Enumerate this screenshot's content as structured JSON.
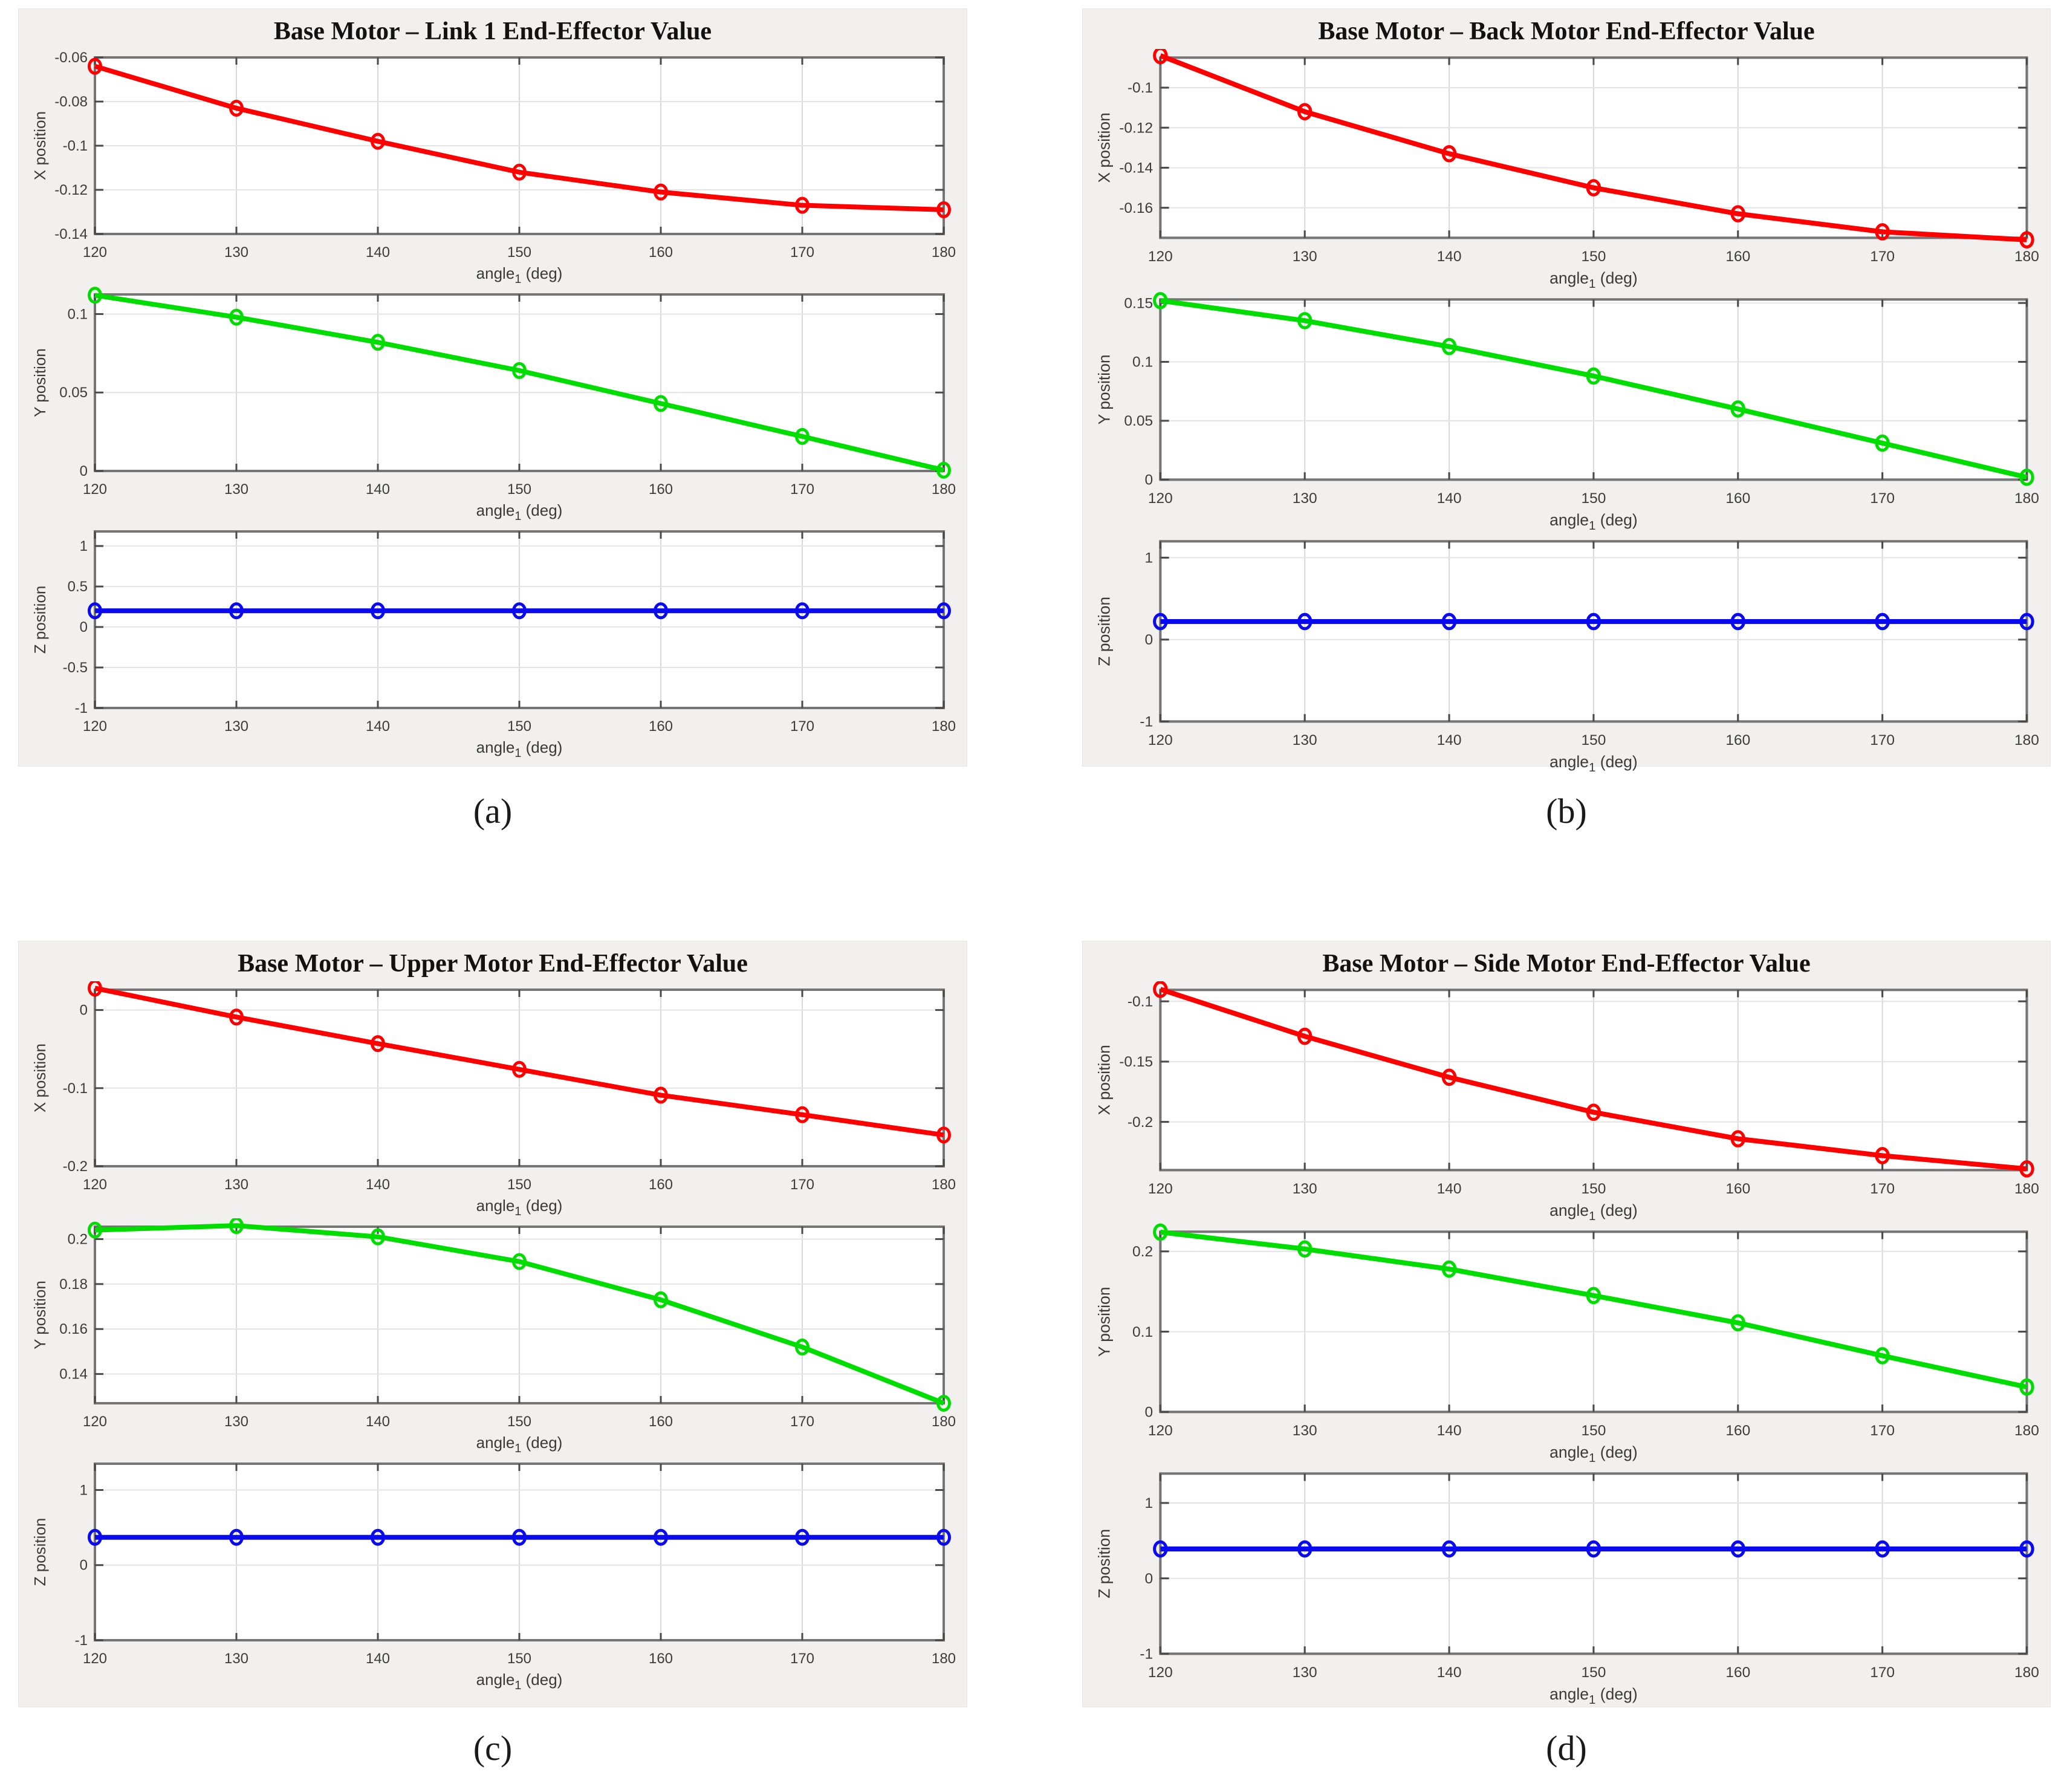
{
  "page": {
    "background_color": "#ffffff"
  },
  "styles": {
    "panel_bg": "#f1f0ee",
    "plot_bg": "#ffffff",
    "frame_color": "#757575",
    "grid_color_vertical": "#d9d9d9",
    "grid_color_horizontal": "#e4e4e4",
    "tick_mark_color": "#4a4a4a",
    "tick_label_color": "#3c3c3c",
    "axis_label_color": "#3a3a3a",
    "title_color": "#121212",
    "caption_color": "#1a1a1a",
    "series_red": "#ff0000",
    "series_green": "#00dd00",
    "series_blue": "#0a0af0"
  },
  "panels": [
    {
      "id": "a",
      "caption": "(a)",
      "title": "Base Motor – Link 1 End-Effector Value",
      "charts": [
        "a-x",
        "a-y",
        "a-z"
      ]
    },
    {
      "id": "b",
      "caption": "(b)",
      "title": "Base Motor – Back Motor End-Effector Value",
      "charts": [
        "b-x",
        "b-y",
        "b-z"
      ]
    },
    {
      "id": "c",
      "caption": "(c)",
      "title": "Base Motor – Upper Motor End-Effector Value",
      "charts": [
        "c-x",
        "c-y",
        "c-z"
      ]
    },
    {
      "id": "d",
      "caption": "(d)",
      "title": "Base Motor – Side Motor End-Effector Value",
      "charts": [
        "d-x",
        "d-y",
        "d-z"
      ]
    }
  ],
  "chart_data": [
    {
      "id": "a-x",
      "panel": "a",
      "type": "line",
      "series": "X position",
      "color": "#ff0000",
      "marker": "o",
      "x": [
        120,
        130,
        140,
        150,
        160,
        170,
        180
      ],
      "y": [
        -0.064,
        -0.083,
        -0.098,
        -0.112,
        -0.121,
        -0.127,
        -0.129
      ],
      "xlabel": "angle_1 (deg)",
      "ylabel": "X position",
      "xlim": [
        120,
        180
      ],
      "ylim": [
        -0.14,
        -0.06
      ],
      "xticks": [
        120,
        130,
        140,
        150,
        160,
        170,
        180
      ],
      "xtick_labels": [
        "120",
        "130",
        "140",
        "150",
        "160",
        "170",
        "180"
      ],
      "yticks": [
        -0.06,
        -0.08,
        -0.1,
        -0.12,
        -0.14
      ],
      "ytick_labels": [
        "-0.06",
        "-0.08",
        "-0.1",
        "-0.12",
        "-0.14"
      ],
      "grid": true
    },
    {
      "id": "a-y",
      "panel": "a",
      "type": "line",
      "series": "Y position",
      "color": "#00dd00",
      "marker": "o",
      "x": [
        120,
        130,
        140,
        150,
        160,
        170,
        180
      ],
      "y": [
        0.112,
        0.098,
        0.082,
        0.064,
        0.043,
        0.022,
        0.0005
      ],
      "xlabel": "angle_1 (deg)",
      "ylabel": "Y position",
      "xlim": [
        120,
        180
      ],
      "ylim": [
        0,
        0.1125
      ],
      "xticks": [
        120,
        130,
        140,
        150,
        160,
        170,
        180
      ],
      "xtick_labels": [
        "120",
        "130",
        "140",
        "150",
        "160",
        "170",
        "180"
      ],
      "yticks": [
        0,
        0.05,
        0.1
      ],
      "ytick_labels": [
        "0",
        "0.05",
        "0.1"
      ],
      "grid": true
    },
    {
      "id": "a-z",
      "panel": "a",
      "type": "line",
      "series": "Z position",
      "color": "#0a0af0",
      "marker": "o",
      "x": [
        120,
        130,
        140,
        150,
        160,
        170,
        180
      ],
      "y": [
        0.2,
        0.2,
        0.2,
        0.2,
        0.2,
        0.2,
        0.2
      ],
      "xlabel": "angle_1 (deg)",
      "ylabel": "Z position",
      "xlim": [
        120,
        180
      ],
      "ylim": [
        -1,
        1.18
      ],
      "xticks": [
        120,
        130,
        140,
        150,
        160,
        170,
        180
      ],
      "xtick_labels": [
        "120",
        "130",
        "140",
        "150",
        "160",
        "170",
        "180"
      ],
      "yticks": [
        -1,
        -0.5,
        0,
        0.5,
        1
      ],
      "ytick_labels": [
        "-1",
        "-0.5",
        "0",
        "0.5",
        "1"
      ],
      "grid": true
    },
    {
      "id": "b-x",
      "panel": "b",
      "type": "line",
      "series": "X position",
      "color": "#ff0000",
      "marker": "o",
      "x": [
        120,
        130,
        140,
        150,
        160,
        170,
        180
      ],
      "y": [
        -0.084,
        -0.112,
        -0.133,
        -0.15,
        -0.163,
        -0.172,
        -0.176
      ],
      "xlabel": "angle_1 (deg)",
      "ylabel": "X position",
      "xlim": [
        120,
        180
      ],
      "ylim": [
        -0.175,
        -0.085
      ],
      "xticks": [
        120,
        130,
        140,
        150,
        160,
        170,
        180
      ],
      "xtick_labels": [
        "120",
        "130",
        "140",
        "150",
        "160",
        "170",
        "180"
      ],
      "yticks": [
        -0.1,
        -0.12,
        -0.14,
        -0.16
      ],
      "ytick_labels": [
        "-0.1",
        "-0.12",
        "-0.14",
        "-0.16"
      ],
      "grid": true
    },
    {
      "id": "b-y",
      "panel": "b",
      "type": "line",
      "series": "Y position",
      "color": "#00dd00",
      "marker": "o",
      "x": [
        120,
        130,
        140,
        150,
        160,
        170,
        180
      ],
      "y": [
        0.152,
        0.135,
        0.113,
        0.088,
        0.06,
        0.031,
        0.002
      ],
      "xlabel": "angle_1 (deg)",
      "ylabel": "Y position",
      "xlim": [
        120,
        180
      ],
      "ylim": [
        0,
        0.153
      ],
      "xticks": [
        120,
        130,
        140,
        150,
        160,
        170,
        180
      ],
      "xtick_labels": [
        "120",
        "130",
        "140",
        "150",
        "160",
        "170",
        "180"
      ],
      "yticks": [
        0,
        0.05,
        0.1,
        0.15
      ],
      "ytick_labels": [
        "0",
        "0.05",
        "0.1",
        "0.15"
      ],
      "grid": true
    },
    {
      "id": "b-z",
      "panel": "b",
      "type": "line",
      "series": "Z position",
      "color": "#0a0af0",
      "marker": "o",
      "x": [
        120,
        130,
        140,
        150,
        160,
        170,
        180
      ],
      "y": [
        0.22,
        0.22,
        0.22,
        0.22,
        0.22,
        0.22,
        0.22
      ],
      "xlabel": "angle_1 (deg)",
      "ylabel": "Z position",
      "xlim": [
        120,
        180
      ],
      "ylim": [
        -1,
        1.2
      ],
      "xticks": [
        120,
        130,
        140,
        150,
        160,
        170,
        180
      ],
      "xtick_labels": [
        "120",
        "130",
        "140",
        "150",
        "160",
        "170",
        "180"
      ],
      "yticks": [
        -1,
        0,
        1
      ],
      "ytick_labels": [
        "-1",
        "0",
        "1"
      ],
      "grid": true
    },
    {
      "id": "c-x",
      "panel": "c",
      "type": "line",
      "series": "X position",
      "color": "#ff0000",
      "marker": "o",
      "x": [
        120,
        130,
        140,
        150,
        160,
        170,
        180
      ],
      "y": [
        0.028,
        -0.009,
        -0.043,
        -0.076,
        -0.109,
        -0.134,
        -0.16
      ],
      "xlabel": "angle_1 (deg)",
      "ylabel": "X position",
      "xlim": [
        120,
        180
      ],
      "ylim": [
        -0.2,
        0.026
      ],
      "xticks": [
        120,
        130,
        140,
        150,
        160,
        170,
        180
      ],
      "xtick_labels": [
        "120",
        "130",
        "140",
        "150",
        "160",
        "170",
        "180"
      ],
      "yticks": [
        0,
        -0.1,
        -0.2
      ],
      "ytick_labels": [
        "0",
        "-0.1",
        "-0.2"
      ],
      "grid": true
    },
    {
      "id": "c-y",
      "panel": "c",
      "type": "line",
      "series": "Y position",
      "color": "#00dd00",
      "marker": "o",
      "x": [
        120,
        130,
        140,
        150,
        160,
        170,
        180
      ],
      "y": [
        0.204,
        0.206,
        0.201,
        0.19,
        0.173,
        0.152,
        0.127
      ],
      "xlabel": "angle_1 (deg)",
      "ylabel": "Y position",
      "xlim": [
        120,
        180
      ],
      "ylim": [
        0.127,
        0.2055
      ],
      "xticks": [
        120,
        130,
        140,
        150,
        160,
        170,
        180
      ],
      "xtick_labels": [
        "120",
        "130",
        "140",
        "150",
        "160",
        "170",
        "180"
      ],
      "yticks": [
        0.14,
        0.16,
        0.18,
        0.2
      ],
      "ytick_labels": [
        "0.14",
        "0.16",
        "0.18",
        "0.2"
      ],
      "grid": true
    },
    {
      "id": "c-z",
      "panel": "c",
      "type": "line",
      "series": "Z position",
      "color": "#0a0af0",
      "marker": "o",
      "x": [
        120,
        130,
        140,
        150,
        160,
        170,
        180
      ],
      "y": [
        0.37,
        0.37,
        0.37,
        0.37,
        0.37,
        0.37,
        0.37
      ],
      "xlabel": "angle_1 (deg)",
      "ylabel": "Z position",
      "xlim": [
        120,
        180
      ],
      "ylim": [
        -1,
        1.35
      ],
      "xticks": [
        120,
        130,
        140,
        150,
        160,
        170,
        180
      ],
      "xtick_labels": [
        "120",
        "130",
        "140",
        "150",
        "160",
        "170",
        "180"
      ],
      "yticks": [
        -1,
        0,
        1
      ],
      "ytick_labels": [
        "-1",
        "0",
        "1"
      ],
      "grid": true
    },
    {
      "id": "d-x",
      "panel": "d",
      "type": "line",
      "series": "X position",
      "color": "#ff0000",
      "marker": "o",
      "x": [
        120,
        130,
        140,
        150,
        160,
        170,
        180
      ],
      "y": [
        -0.09,
        -0.129,
        -0.163,
        -0.192,
        -0.214,
        -0.228,
        -0.239
      ],
      "xlabel": "angle_1 (deg)",
      "ylabel": "X position",
      "xlim": [
        120,
        180
      ],
      "ylim": [
        -0.24,
        -0.0905
      ],
      "xticks": [
        120,
        130,
        140,
        150,
        160,
        170,
        180
      ],
      "xtick_labels": [
        "120",
        "130",
        "140",
        "150",
        "160",
        "170",
        "180"
      ],
      "yticks": [
        -0.1,
        -0.15,
        -0.2
      ],
      "ytick_labels": [
        "-0.1",
        "-0.15",
        "-0.2"
      ],
      "grid": true
    },
    {
      "id": "d-y",
      "panel": "d",
      "type": "line",
      "series": "Y position",
      "color": "#00dd00",
      "marker": "o",
      "x": [
        120,
        130,
        140,
        150,
        160,
        170,
        180
      ],
      "y": [
        0.224,
        0.203,
        0.178,
        0.145,
        0.111,
        0.07,
        0.031
      ],
      "xlabel": "angle_1 (deg)",
      "ylabel": "Y position",
      "xlim": [
        120,
        180
      ],
      "ylim": [
        0,
        0.2245
      ],
      "xticks": [
        120,
        130,
        140,
        150,
        160,
        170,
        180
      ],
      "xtick_labels": [
        "120",
        "130",
        "140",
        "150",
        "160",
        "170",
        "180"
      ],
      "yticks": [
        0,
        0.1,
        0.2
      ],
      "ytick_labels": [
        "0",
        "0.1",
        "0.2"
      ],
      "grid": true
    },
    {
      "id": "d-z",
      "panel": "d",
      "type": "line",
      "series": "Z position",
      "color": "#0a0af0",
      "marker": "o",
      "x": [
        120,
        130,
        140,
        150,
        160,
        170,
        180
      ],
      "y": [
        0.39,
        0.39,
        0.39,
        0.39,
        0.39,
        0.39,
        0.39
      ],
      "xlabel": "angle_1 (deg)",
      "ylabel": "Z position",
      "xlim": [
        120,
        180
      ],
      "ylim": [
        -1,
        1.39
      ],
      "xticks": [
        120,
        130,
        140,
        150,
        160,
        170,
        180
      ],
      "xtick_labels": [
        "120",
        "130",
        "140",
        "150",
        "160",
        "170",
        "180"
      ],
      "yticks": [
        -1,
        0,
        1
      ],
      "ytick_labels": [
        "-1",
        "0",
        "1"
      ],
      "grid": true
    }
  ]
}
